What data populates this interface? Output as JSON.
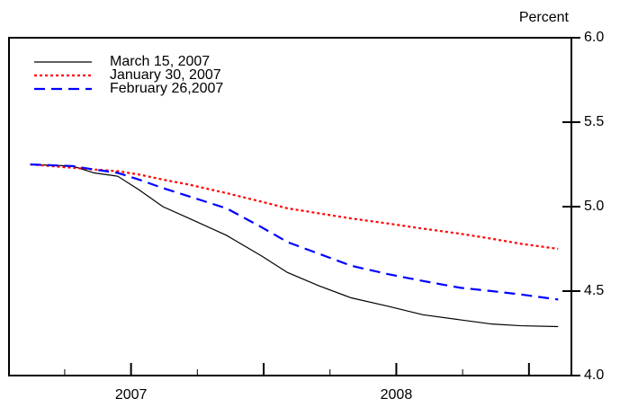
{
  "chart_data": {
    "type": "line",
    "y_label": "Percent",
    "x": [
      2006.62,
      2006.78,
      2006.86,
      2006.95,
      2007.03,
      2007.12,
      2007.22,
      2007.36,
      2007.49,
      2007.59,
      2007.71,
      2007.83,
      2007.97,
      2008.1,
      2008.24,
      2008.36,
      2008.47,
      2008.61
    ],
    "series": [
      {
        "name": "March 15, 2007",
        "color": "#000000",
        "dash": "solid",
        "values": [
          5.25,
          5.24,
          5.2,
          5.18,
          5.1,
          5.0,
          4.93,
          4.83,
          4.71,
          4.61,
          4.53,
          4.46,
          4.41,
          4.36,
          4.33,
          4.305,
          4.295,
          4.29
        ]
      },
      {
        "name": "January 30, 2007",
        "color": "#ff0000",
        "dash": "dotted",
        "values": [
          5.25,
          5.23,
          5.22,
          5.21,
          5.19,
          5.16,
          5.13,
          5.08,
          5.03,
          4.99,
          4.96,
          4.93,
          4.9,
          4.87,
          4.84,
          4.81,
          4.78,
          4.75
        ]
      },
      {
        "name": "February 26,2007",
        "color": "#0000ff",
        "dash": "dashed",
        "values": [
          5.25,
          5.24,
          5.22,
          5.2,
          5.16,
          5.11,
          5.06,
          4.99,
          4.88,
          4.79,
          4.72,
          4.65,
          4.6,
          4.56,
          4.52,
          4.5,
          4.48,
          4.45
        ]
      }
    ],
    "xlim": [
      2006.54,
      2008.66
    ],
    "xticks": [
      {
        "value": 2007,
        "label": "2007"
      },
      {
        "value": 2008,
        "label": "2008"
      }
    ],
    "xmajor_ticks": [
      2007,
      2007.5,
      2008,
      2008.5
    ],
    "xminor_ticks": [
      2006.75,
      2007.25,
      2007.75,
      2008.25
    ],
    "ylim": [
      4.0,
      6.0
    ],
    "yticks": [
      {
        "value": 4.0,
        "label": "4.0"
      },
      {
        "value": 4.5,
        "label": "4.5"
      },
      {
        "value": 5.0,
        "label": "5.0"
      },
      {
        "value": 5.5,
        "label": "5.5"
      },
      {
        "value": 6.0,
        "label": "6.0"
      }
    ],
    "y_axis_side": "right",
    "legend": "top-left"
  }
}
